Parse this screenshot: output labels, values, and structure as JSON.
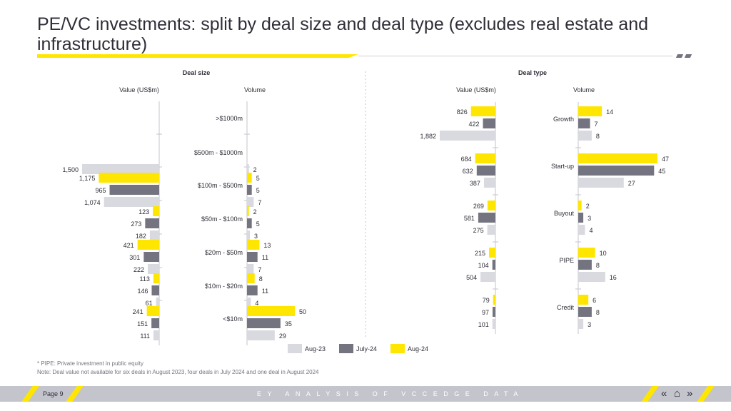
{
  "page": {
    "title": "PE/VC investments: split by deal size and deal type (excludes real estate and infrastructure)",
    "footnote": "* PIPE: Private investment in public equity",
    "note": "Note: Deal value not available for six deals in August 2023, four deals in July 2024 and one deal in August 2024",
    "page_label": "Page 9",
    "footer_band": "EY ANALYSIS OF VCCEDGE DATA",
    "nav_prev": "«",
    "nav_home": "⌂",
    "nav_next": "»"
  },
  "colors": {
    "aug23": "#d9d9e0",
    "jul24": "#747480",
    "aug24": "#ffe600",
    "text": "#2e2e38",
    "axis": "#c4c4cd"
  },
  "chart_data": [
    {
      "type": "bar",
      "panel": "Deal size",
      "title": "Deal size",
      "value_label": "Value (US$m)",
      "volume_label": "Volume",
      "categories": [
        ">$1000m",
        "$500m - $1000m",
        "$100m - $500m",
        "$50m - $100m",
        "$20m - $50m",
        "$10m - $20m",
        "<$10m"
      ],
      "series": [
        {
          "name": "Aug-23",
          "value": [
            null,
            1500,
            1074,
            182,
            222,
            61,
            111
          ],
          "volume": [
            null,
            2,
            7,
            3,
            7,
            4,
            29
          ]
        },
        {
          "name": "July-24",
          "value": [
            null,
            null,
            965,
            273,
            301,
            146,
            151
          ],
          "volume": [
            null,
            null,
            5,
            5,
            11,
            11,
            35
          ]
        },
        {
          "name": "Aug-24",
          "value": [
            null,
            null,
            1175,
            123,
            421,
            113,
            241
          ],
          "volume": [
            null,
            null,
            5,
            2,
            13,
            8,
            50
          ]
        }
      ]
    },
    {
      "type": "bar",
      "panel": "Deal type",
      "title": "Deal type",
      "value_label": "Value (US$m)",
      "volume_label": "Volume",
      "categories": [
        "Growth",
        "Start-up",
        "Buyout",
        "PIPE",
        "Credit"
      ],
      "series": [
        {
          "name": "Aug-23",
          "value": [
            1882,
            387,
            275,
            504,
            101
          ],
          "volume": [
            8,
            27,
            4,
            16,
            3
          ]
        },
        {
          "name": "July-24",
          "value": [
            422,
            632,
            581,
            104,
            97
          ],
          "volume": [
            7,
            45,
            3,
            8,
            8
          ]
        },
        {
          "name": "Aug-24",
          "value": [
            826,
            684,
            269,
            215,
            79
          ],
          "volume": [
            14,
            47,
            2,
            10,
            6
          ]
        }
      ]
    }
  ],
  "legend": [
    {
      "label": "Aug-23",
      "color": "#d9d9e0"
    },
    {
      "label": "July-24",
      "color": "#747480"
    },
    {
      "label": "Aug-24",
      "color": "#ffe600"
    }
  ]
}
